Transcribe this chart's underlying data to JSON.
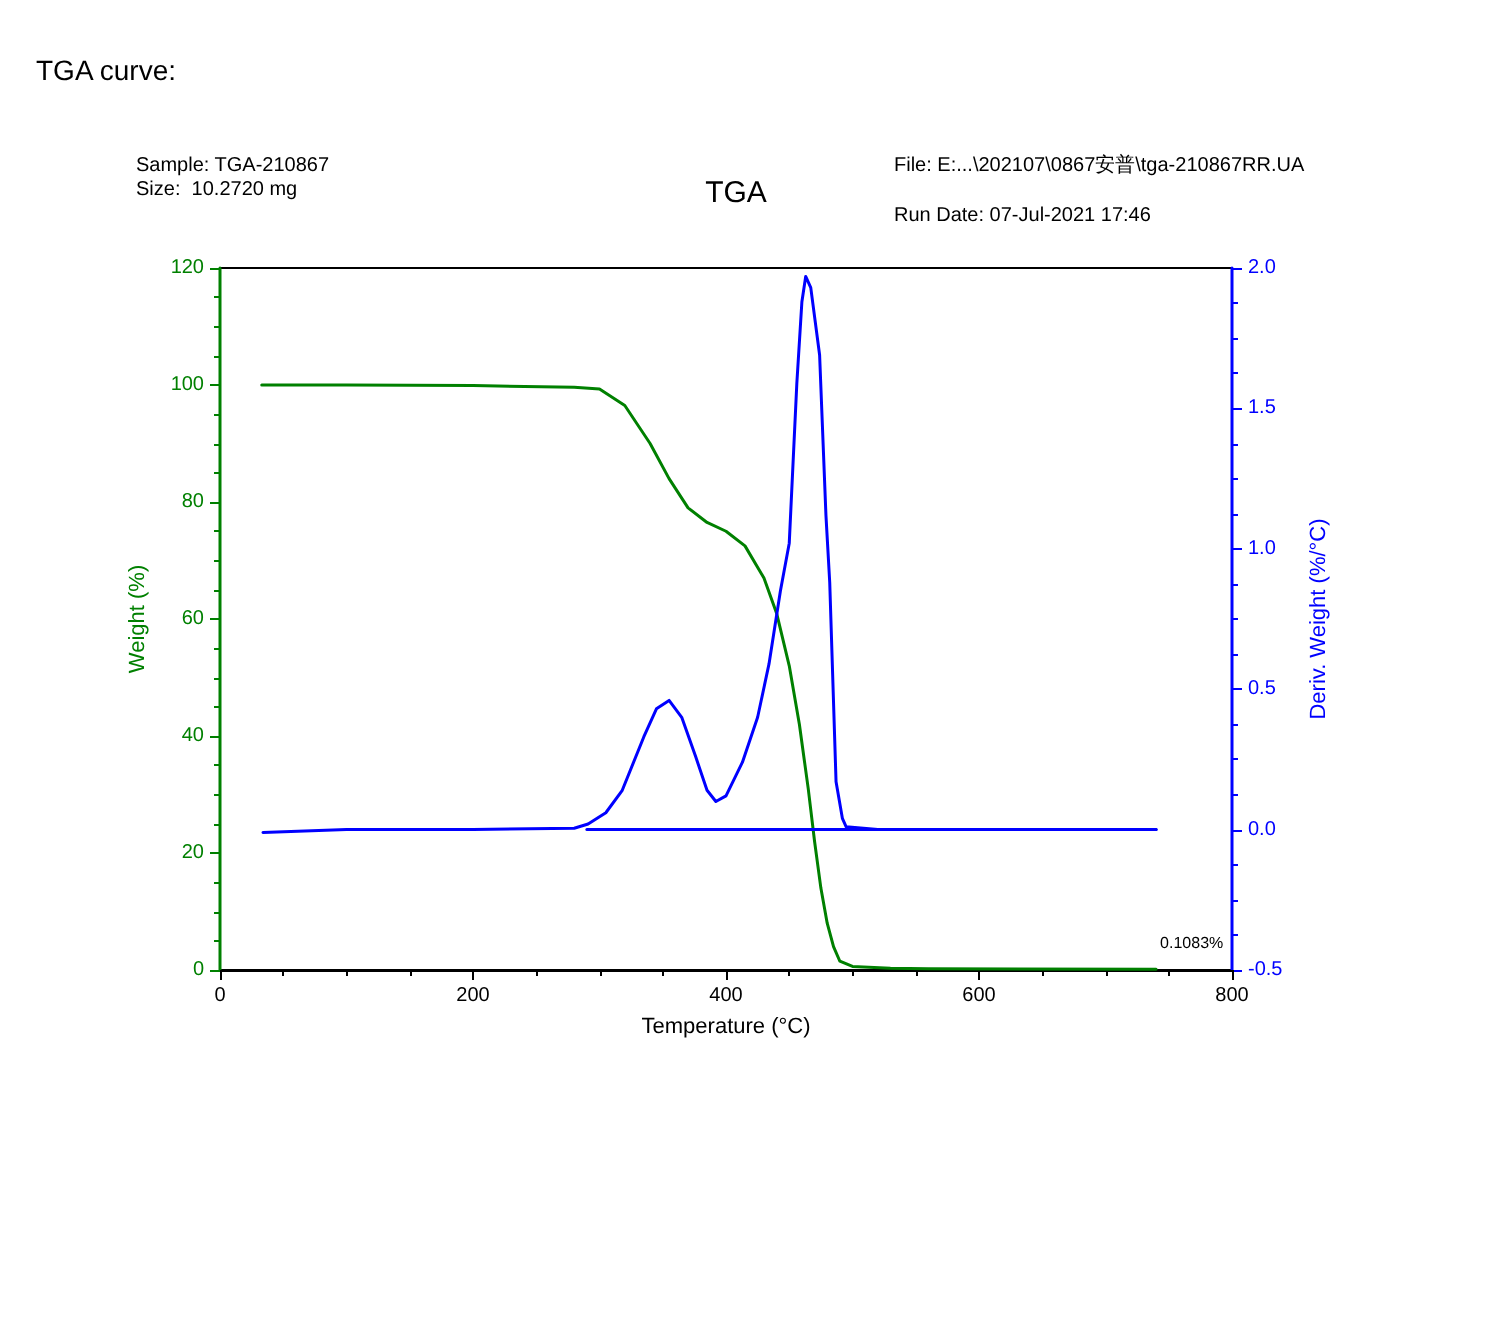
{
  "chart_data": {
    "type": "line",
    "title": "TGA",
    "xlabel": "Temperature (°C)",
    "ylabel": "Weight (%)",
    "y2label": "Deriv. Weight (%/°C)",
    "annotations": [
      "TGA curve:",
      "Sample: TGA-210867",
      "Size:  10.2720 mg",
      "File: E:...\\202107\\0867安普\\tga-210867RR.UA",
      "Run Date: 07-Jul-2021 17:46",
      {
        "text": "0.1083%",
        "x": 740,
        "y": 0.1083
      }
    ],
    "xlim": [
      0,
      800
    ],
    "xticks": [
      0,
      200,
      400,
      600,
      800
    ],
    "ylim": [
      0,
      120
    ],
    "yticks": [
      0,
      20,
      40,
      60,
      80,
      100,
      120
    ],
    "y2lim": [
      -0.5,
      2.0
    ],
    "y2ticks": [
      {
        "value": -0.5,
        "label": "-0.5"
      },
      {
        "value": 0,
        "label": "0.0"
      },
      {
        "value": 0.5,
        "label": "0.5"
      },
      {
        "value": 1,
        "label": "1.0"
      },
      {
        "value": 1.5,
        "label": "1.5"
      },
      {
        "value": 2,
        "label": "2.0"
      }
    ],
    "grid": false,
    "marker": "none",
    "line_style": "solid",
    "series": [
      {
        "color": "#008000",
        "x": [
          33,
          100,
          200,
          280,
          300,
          320,
          340,
          355,
          370,
          385,
          400,
          415,
          430,
          440,
          450,
          458,
          465,
          470,
          475,
          480,
          485,
          490,
          500,
          530,
          560,
          740
        ],
        "values": [
          100,
          100,
          99.9,
          99.6,
          99.3,
          96.5,
          90,
          84,
          79,
          76.5,
          75,
          72.5,
          67,
          61,
          52,
          42,
          31,
          22,
          14,
          8,
          4,
          1.5,
          0.6,
          0.3,
          0.2,
          0.1083
        ]
      },
      {
        "color": "#0000ff",
        "axis": "y2",
        "x": [
          34,
          100,
          200,
          280,
          291,
          305,
          318,
          335,
          345,
          355,
          365,
          376,
          385,
          392,
          400,
          413,
          425,
          434,
          443,
          450,
          456,
          460,
          463,
          467,
          474,
          479,
          482,
          487,
          492,
          495,
          520,
          740
        ],
        "values": [
          -0.01,
          0,
          0,
          0.005,
          0.02,
          0.06,
          0.14,
          0.33,
          0.43,
          0.46,
          0.4,
          0.26,
          0.14,
          0.1,
          0.12,
          0.24,
          0.4,
          0.59,
          0.85,
          1.02,
          1.59,
          1.88,
          1.97,
          1.93,
          1.69,
          1.12,
          0.88,
          0.17,
          0.04,
          0.01,
          0,
          0
        ]
      },
      {
        "color": "#0000ff",
        "axis": "y2",
        "x": [
          290,
          740
        ],
        "values": [
          0,
          0
        ]
      }
    ]
  }
}
